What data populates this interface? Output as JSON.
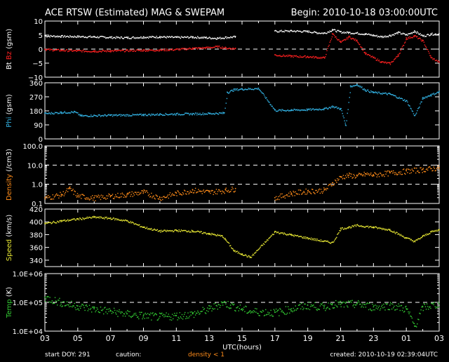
{
  "header": {
    "title": "ACE RTSW (Estimated) MAG & SWEPAM",
    "begin": "Begin: 2010-10-18 03:00:00UTC"
  },
  "footer": {
    "start_doy": "start DOY: 291",
    "caution": "caution:",
    "density_note": "density < 1",
    "created": "created: 2010-10-19 02:39:04UTC",
    "xlabel": "UTC(hours)"
  },
  "colors": {
    "bt": "#ffffff",
    "bz": "#ff2020",
    "phi": "#33b4e6",
    "density": "#ff8c1a",
    "speed": "#e6e633",
    "temp": "#33cc33",
    "frame": "#ffffff",
    "dash": "#ffffff"
  },
  "chart_data": [
    {
      "type": "scatter",
      "panel": "mag",
      "ylabel_parts": [
        "Bt",
        "Bz",
        "(gsm)"
      ],
      "ylim": [
        -10,
        10
      ],
      "yticks": [
        -10,
        -5,
        0,
        5,
        10
      ],
      "ytick_labels": [
        "−10",
        "−5",
        "0",
        "5",
        "10"
      ],
      "ref_lines": [
        0
      ],
      "log": false,
      "x_hours": [
        0,
        24
      ],
      "xticks": [
        "03",
        "05",
        "07",
        "09",
        "11",
        "13",
        "15",
        "17",
        "19",
        "21",
        "23",
        "01",
        "03"
      ],
      "series": [
        {
          "name": "Bt",
          "color_key": "bt",
          "points": [
            [
              0,
              4.8
            ],
            [
              1,
              4.7
            ],
            [
              2,
              4.6
            ],
            [
              3,
              4.5
            ],
            [
              4,
              4.3
            ],
            [
              5,
              4.2
            ],
            [
              6,
              4.4
            ],
            [
              7,
              4.5
            ],
            [
              8,
              4.3
            ],
            [
              9,
              4.4
            ],
            [
              9.8,
              4.2
            ],
            [
              10.5,
              4.0
            ],
            [
              11,
              4.3
            ],
            [
              11.6,
              4.5
            ],
            [
              14,
              6.5
            ],
            [
              15,
              6.6
            ],
            [
              16,
              6.4
            ],
            [
              16.5,
              6.0
            ],
            [
              17,
              5.8
            ],
            [
              17.5,
              7.0
            ],
            [
              18,
              6.2
            ],
            [
              18.5,
              6.0
            ],
            [
              19,
              5.8
            ],
            [
              19.5,
              5.5
            ],
            [
              20,
              5.0
            ],
            [
              20.5,
              4.5
            ],
            [
              21,
              5.0
            ],
            [
              21.5,
              6.0
            ],
            [
              22,
              5.2
            ],
            [
              22.5,
              6.5
            ],
            [
              23,
              4.8
            ],
            [
              23.5,
              5.5
            ],
            [
              24,
              5.5
            ]
          ]
        },
        {
          "name": "Bz",
          "color_key": "bz",
          "points": [
            [
              0,
              0.0
            ],
            [
              1,
              -0.3
            ],
            [
              2,
              -0.5
            ],
            [
              3,
              -0.6
            ],
            [
              4,
              -0.5
            ],
            [
              5,
              -0.4
            ],
            [
              6,
              -0.3
            ],
            [
              7,
              -0.2
            ],
            [
              8,
              0.0
            ],
            [
              9,
              0.4
            ],
            [
              9.8,
              0.6
            ],
            [
              10.5,
              1.0
            ],
            [
              11,
              0.5
            ],
            [
              11.6,
              0.3
            ],
            [
              14,
              -2.0
            ],
            [
              15,
              -2.4
            ],
            [
              16,
              -2.6
            ],
            [
              16.5,
              -2.8
            ],
            [
              17,
              -3.0
            ],
            [
              17.5,
              5.5
            ],
            [
              18,
              2.5
            ],
            [
              18.5,
              4.5
            ],
            [
              19,
              3.0
            ],
            [
              19.5,
              -1.5
            ],
            [
              20,
              -3.0
            ],
            [
              20.5,
              -4.5
            ],
            [
              21,
              -5.0
            ],
            [
              21.5,
              -2.0
            ],
            [
              22,
              4.0
            ],
            [
              22.5,
              4.8
            ],
            [
              23,
              3.0
            ],
            [
              23.5,
              -3.0
            ],
            [
              24,
              -4.5
            ]
          ]
        }
      ]
    },
    {
      "type": "scatter",
      "panel": "phi",
      "ylabel_parts": [
        "Phi",
        "(gsm)"
      ],
      "ylim": [
        0,
        360
      ],
      "yticks": [
        0,
        90,
        180,
        270,
        360
      ],
      "ytick_labels": [
        "0",
        "90",
        "180",
        "270",
        "360"
      ],
      "ref_lines": [],
      "log": false,
      "series": [
        {
          "name": "Phi",
          "color_key": "phi",
          "points": [
            [
              0,
              165
            ],
            [
              1,
              172
            ],
            [
              1.8,
              175
            ],
            [
              2.2,
              150
            ],
            [
              3,
              152
            ],
            [
              4,
              154
            ],
            [
              5,
              155
            ],
            [
              6,
              157
            ],
            [
              7,
              160
            ],
            [
              8,
              162
            ],
            [
              9,
              163
            ],
            [
              10,
              165
            ],
            [
              10.9,
              168
            ],
            [
              11.1,
              300
            ],
            [
              11.5,
              318
            ],
            [
              12,
              322
            ],
            [
              13,
              325
            ],
            [
              14,
              185
            ],
            [
              15,
              187
            ],
            [
              16,
              190
            ],
            [
              17,
              195
            ],
            [
              17.5,
              210
            ],
            [
              18,
              195
            ],
            [
              18.3,
              90
            ],
            [
              18.6,
              340
            ],
            [
              19,
              350
            ],
            [
              19.5,
              315
            ],
            [
              20,
              300
            ],
            [
              21,
              290
            ],
            [
              22,
              245
            ],
            [
              22.5,
              150
            ],
            [
              23,
              265
            ],
            [
              23.5,
              285
            ],
            [
              24,
              305
            ]
          ]
        }
      ]
    },
    {
      "type": "scatter",
      "panel": "density",
      "ylabel_parts": [
        "Density",
        "(/cm3)"
      ],
      "ylim": [
        0.1,
        100
      ],
      "yticks": [
        0.1,
        1,
        10,
        100
      ],
      "ytick_labels": [
        "0.1",
        "1.0",
        "10.0",
        "100.0"
      ],
      "ref_lines": [
        1,
        10
      ],
      "log": true,
      "series": [
        {
          "name": "Density",
          "color_key": "density",
          "points": [
            [
              0,
              0.2
            ],
            [
              1,
              0.3
            ],
            [
              1.5,
              0.6
            ],
            [
              2,
              0.25
            ],
            [
              3,
              0.2
            ],
            [
              4,
              0.25
            ],
            [
              5,
              0.3
            ],
            [
              6,
              0.4
            ],
            [
              7,
              0.2
            ],
            [
              8,
              0.35
            ],
            [
              9,
              0.5
            ],
            [
              10,
              0.4
            ],
            [
              11,
              0.5
            ],
            [
              11.6,
              0.6
            ],
            [
              14,
              0.2
            ],
            [
              15,
              0.35
            ],
            [
              16,
              0.45
            ],
            [
              17,
              0.5
            ],
            [
              17.5,
              1.2
            ],
            [
              18,
              2.5
            ],
            [
              18.5,
              3.0
            ],
            [
              19,
              2.8
            ],
            [
              19.5,
              3.5
            ],
            [
              20,
              3.2
            ],
            [
              21,
              4.0
            ],
            [
              22,
              5.0
            ],
            [
              23,
              6.0
            ],
            [
              24,
              7.5
            ]
          ]
        }
      ]
    },
    {
      "type": "scatter",
      "panel": "speed",
      "ylabel_parts": [
        "Speed",
        "(km/s)"
      ],
      "ylim": [
        330,
        420
      ],
      "yticks": [
        340,
        360,
        380,
        400,
        420
      ],
      "ytick_labels": [
        "340",
        "360",
        "380",
        "400",
        "420"
      ],
      "ref_lines": [],
      "log": false,
      "series": [
        {
          "name": "Speed",
          "color_key": "speed",
          "points": [
            [
              0,
              398
            ],
            [
              1,
              402
            ],
            [
              2,
              405
            ],
            [
              3,
              408
            ],
            [
              4,
              406
            ],
            [
              5,
              402
            ],
            [
              6,
              392
            ],
            [
              7,
              386
            ],
            [
              8,
              387
            ],
            [
              9,
              386
            ],
            [
              10,
              382
            ],
            [
              10.8,
              378
            ],
            [
              11,
              372
            ],
            [
              11.5,
              355
            ],
            [
              12,
              350
            ],
            [
              12.5,
              345
            ],
            [
              14,
              385
            ],
            [
              15,
              380
            ],
            [
              16,
              375
            ],
            [
              17,
              370
            ],
            [
              17.5,
              368
            ],
            [
              18,
              390
            ],
            [
              18.5,
              392
            ],
            [
              19,
              395
            ],
            [
              20,
              392
            ],
            [
              21,
              388
            ],
            [
              22,
              375
            ],
            [
              22.5,
              370
            ],
            [
              23,
              378
            ],
            [
              23.5,
              385
            ],
            [
              24,
              388
            ]
          ]
        }
      ]
    },
    {
      "type": "scatter",
      "panel": "temp",
      "ylabel_parts": [
        "Temp",
        "(K)"
      ],
      "ylim": [
        10000,
        1000000
      ],
      "yticks": [
        10000,
        100000,
        1000000
      ],
      "ytick_labels": [
        "1.0E+04",
        "1.0E+05",
        "1.0E+06"
      ],
      "ref_lines": [
        100000
      ],
      "log": true,
      "series": [
        {
          "name": "Temp",
          "color_key": "temp",
          "points": [
            [
              0,
              150000
            ],
            [
              1,
              100000
            ],
            [
              2,
              75000
            ],
            [
              3,
              60000
            ],
            [
              4,
              50000
            ],
            [
              5,
              40000
            ],
            [
              6,
              35000
            ],
            [
              7,
              32000
            ],
            [
              8,
              35000
            ],
            [
              9,
              40000
            ],
            [
              10,
              60000
            ],
            [
              10.8,
              100000
            ],
            [
              11.3,
              80000
            ],
            [
              12,
              60000
            ],
            [
              12.5,
              50000
            ],
            [
              14,
              45000
            ],
            [
              15,
              60000
            ],
            [
              16,
              80000
            ],
            [
              17,
              70000
            ],
            [
              17.5,
              90000
            ],
            [
              18,
              85000
            ],
            [
              19,
              90000
            ],
            [
              20,
              70000
            ],
            [
              21,
              80000
            ],
            [
              22,
              60000
            ],
            [
              22.5,
              15000
            ],
            [
              23,
              70000
            ],
            [
              24,
              90000
            ]
          ]
        }
      ]
    }
  ]
}
